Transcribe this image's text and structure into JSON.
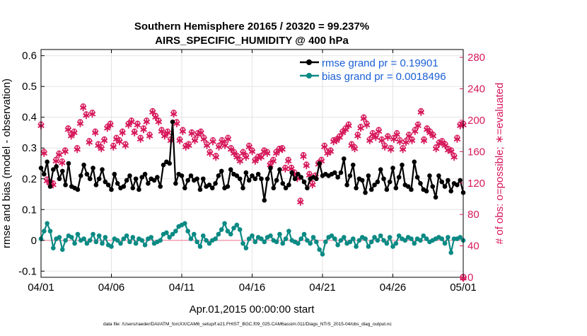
{
  "chart_data": {
    "type": "line",
    "title_line1": "Southern Hemisphere 20165 / 20320 = 99.237%",
    "title_line2": "AIRS_SPECIFIC_HUMIDITY @ 400 hPa",
    "xlabel": "Apr.01,2015 00:00:00 start",
    "ylabel_left": "rmse and bias (model - observation)",
    "ylabel_right": "# of obs: o=possible; ∗=evaluated",
    "footer": "data file: /Users/raeder/DAI/ATM_forcXX/CAM6_setup/f.e21.FHIST_BGC.f09_025.CAM6assim.011/Diags_NTrS_2015-04/obs_diag_output.nc",
    "xlim": [
      0,
      30
    ],
    "ylim_left": [
      -0.12,
      0.62
    ],
    "ylim_right": [
      0,
      290
    ],
    "x_ticks": [
      0,
      5,
      10,
      15,
      20,
      25,
      30
    ],
    "x_tick_labels": [
      "04/01",
      "04/06",
      "04/11",
      "04/16",
      "04/21",
      "04/26",
      "05/01"
    ],
    "y_left_ticks": [
      -0.1,
      0,
      0.1,
      0.2,
      0.3,
      0.4,
      0.5,
      0.6
    ],
    "y_left_tick_labels": [
      "-0.1",
      "0",
      "0.1",
      "0.2",
      "0.3",
      "0.4",
      "0.5",
      "0.6"
    ],
    "y_right_ticks": [
      0,
      40,
      80,
      120,
      160,
      200,
      240,
      280
    ],
    "y_right_tick_labels": [
      "0",
      "40",
      "80",
      "120",
      "160",
      "200",
      "240",
      "280"
    ],
    "legend": [
      {
        "name": "rmse grand pr = 0.19901",
        "color": "#000000"
      },
      {
        "name": "bias grand pr = 0.0018496",
        "color": "#0b8a84"
      }
    ],
    "legend_text_color": "#1a5fd6",
    "colors": {
      "rmse": "#000000",
      "bias": "#0b8a84",
      "obs": "#d6185b",
      "zero_line": "#f0a0b5",
      "grid": "#e3e3e3"
    },
    "series": [
      {
        "name": "rmse",
        "axis": "left",
        "values": [
          0.235,
          0.215,
          0.255,
          0.175,
          0.23,
          0.24,
          0.2,
          0.225,
          0.18,
          0.25,
          0.175,
          0.17,
          0.165,
          0.21,
          0.245,
          0.215,
          0.2,
          0.235,
          0.18,
          0.2,
          0.23,
          0.19,
          0.18,
          0.165,
          0.215,
          0.185,
          0.17,
          0.175,
          0.195,
          0.21,
          0.17,
          0.2,
          0.165,
          0.205,
          0.215,
          0.185,
          0.2,
          0.195,
          0.205,
          0.175,
          0.245,
          0.255,
          0.25,
          0.385,
          0.185,
          0.215,
          0.21,
          0.17,
          0.195,
          0.21,
          0.195,
          0.2,
          0.165,
          0.2,
          0.175,
          0.18,
          0.17,
          0.185,
          0.21,
          0.225,
          0.17,
          0.175,
          0.23,
          0.215,
          0.21,
          0.2,
          0.17,
          0.22,
          0.195,
          0.21,
          0.2,
          0.215,
          0.2,
          0.13,
          0.2,
          0.235,
          0.17,
          0.195,
          0.23,
          0.185,
          0.17,
          0.18,
          0.22,
          0.2,
          0.215,
          0.205,
          0.19,
          0.17,
          0.2,
          0.205,
          0.2,
          0.25,
          0.21,
          0.215,
          0.21,
          0.215,
          0.22,
          0.205,
          0.22,
          0.265,
          0.18,
          0.21,
          0.245,
          0.17,
          0.2,
          0.195,
          0.155,
          0.21,
          0.165,
          0.18,
          0.19,
          0.23,
          0.2,
          0.165,
          0.19,
          0.235,
          0.17,
          0.205,
          0.245,
          0.18,
          0.175,
          0.165,
          0.255,
          0.205,
          0.185,
          0.165,
          0.16,
          0.21,
          0.175,
          0.14,
          0.21,
          0.19,
          0.175,
          0.195,
          0.16,
          0.185,
          0.18,
          0.195,
          0.155
        ]
      },
      {
        "name": "bias",
        "axis": "left",
        "values": [
          0.005,
          0.03,
          0.055,
          0.03,
          -0.025,
          0.005,
          0.01,
          -0.03,
          0.0,
          0.015,
          0.01,
          -0.01,
          0.02,
          0.0,
          0.005,
          -0.01,
          0.0,
          0.02,
          -0.005,
          0.015,
          -0.01,
          0.01,
          -0.015,
          -0.02,
          0.005,
          0.0,
          -0.01,
          0.005,
          0.015,
          -0.005,
          0.01,
          -0.01,
          0.005,
          0.0,
          -0.015,
          0.005,
          0.01,
          -0.01,
          -0.005,
          0.0,
          0.02,
          0.025,
          0.01,
          0.02,
          0.03,
          0.045,
          0.05,
          0.055,
          0.03,
          0.005,
          0.02,
          -0.005,
          -0.02,
          0.015,
          0.0,
          -0.01,
          0.0,
          0.005,
          0.02,
          0.035,
          0.055,
          0.03,
          0.02,
          0.04,
          0.05,
          0.035,
          -0.01,
          -0.025,
          0.005,
          0.015,
          -0.005,
          0.01,
          0.005,
          -0.005,
          0.01,
          0.015,
          0.0,
          -0.005,
          0.02,
          -0.01,
          0.005,
          0.03,
          0.0,
          -0.005,
          -0.01,
          0.005,
          0.02,
          0.0,
          -0.01,
          0.01,
          -0.005,
          -0.03,
          -0.045,
          -0.005,
          0.01,
          0.015,
          0.005,
          -0.015,
          0.0,
          0.01,
          -0.01,
          -0.005,
          0.005,
          -0.02,
          0.0,
          0.01,
          0.005,
          -0.02,
          -0.005,
          0.01,
          0.0,
          0.015,
          0.0,
          -0.01,
          0.01,
          -0.02,
          -0.01,
          0.015,
          0.005,
          0.0,
          0.01,
          0.005,
          -0.01,
          0.005,
          0.0,
          0.015,
          0.005,
          -0.005,
          0.0,
          0.005,
          0.01,
          0.005,
          -0.01,
          0.01,
          -0.04,
          0.005,
          0.005,
          0.01,
          0.0
        ]
      },
      {
        "name": "obs possible (o)",
        "axis": "right",
        "values": [
          195,
          160,
          125,
          122,
          120,
          150,
          158,
          148,
          162,
          190,
          182,
          186,
          165,
          198,
          218,
          208,
          174,
          210,
          186,
          170,
          166,
          176,
          192,
          196,
          168,
          178,
          175,
          186,
          170,
          196,
          200,
          186,
          196,
          178,
          190,
          200,
          182,
          212,
          206,
          200,
          188,
          182,
          186,
          176,
          210,
          198,
          176,
          188,
          168,
          170,
          185,
          176,
          184,
          186,
          178,
          170,
          160,
          175,
          155,
          168,
          175,
          170,
          178,
          165,
          160,
          155,
          150,
          160,
          155,
          168,
          162,
          150,
          154,
          155,
          162,
          160,
          145,
          150,
          160,
          164,
          165,
          140,
          150,
          140,
          134,
          128,
          98,
          156,
          144,
          132,
          120,
          130,
          146,
          150,
          168,
          160,
          162,
          175,
          176,
          180,
          186,
          190,
          195,
          170,
          166,
          182,
          192,
          204,
          196,
          176,
          184,
          180,
          188,
          176,
          168,
          180,
          165,
          178,
          184,
          175,
          165,
          174,
          182,
          176,
          188,
          195,
          212,
          176,
          190,
          186,
          182,
          166,
          172,
          174,
          170,
          164,
          162,
          155,
          178,
          195,
          196
        ]
      },
      {
        "name": "obs evaluated (*)",
        "axis": "right",
        "values": [
          194,
          159,
          124,
          121,
          119,
          149,
          157,
          147,
          161,
          189,
          181,
          185,
          164,
          197,
          217,
          207,
          173,
          209,
          185,
          169,
          165,
          175,
          191,
          195,
          167,
          177,
          174,
          185,
          169,
          195,
          199,
          185,
          195,
          177,
          189,
          199,
          181,
          211,
          205,
          199,
          187,
          181,
          185,
          175,
          209,
          197,
          175,
          187,
          167,
          169,
          184,
          175,
          183,
          185,
          177,
          169,
          159,
          174,
          154,
          167,
          174,
          169,
          177,
          164,
          159,
          154,
          149,
          159,
          154,
          167,
          161,
          149,
          153,
          154,
          161,
          159,
          144,
          149,
          159,
          163,
          164,
          139,
          149,
          139,
          133,
          127,
          97,
          155,
          143,
          131,
          119,
          129,
          145,
          149,
          167,
          159,
          161,
          174,
          175,
          179,
          185,
          189,
          194,
          169,
          165,
          181,
          191,
          203,
          195,
          175,
          183,
          179,
          187,
          175,
          167,
          179,
          164,
          177,
          183,
          174,
          164,
          173,
          181,
          175,
          187,
          194,
          211,
          175,
          189,
          185,
          181,
          165,
          171,
          173,
          169,
          163,
          161,
          154,
          177,
          194,
          195
        ]
      },
      {
        "name": "obs end point",
        "axis": "right",
        "x": [
          30
        ],
        "values": [
          0
        ]
      }
    ]
  }
}
